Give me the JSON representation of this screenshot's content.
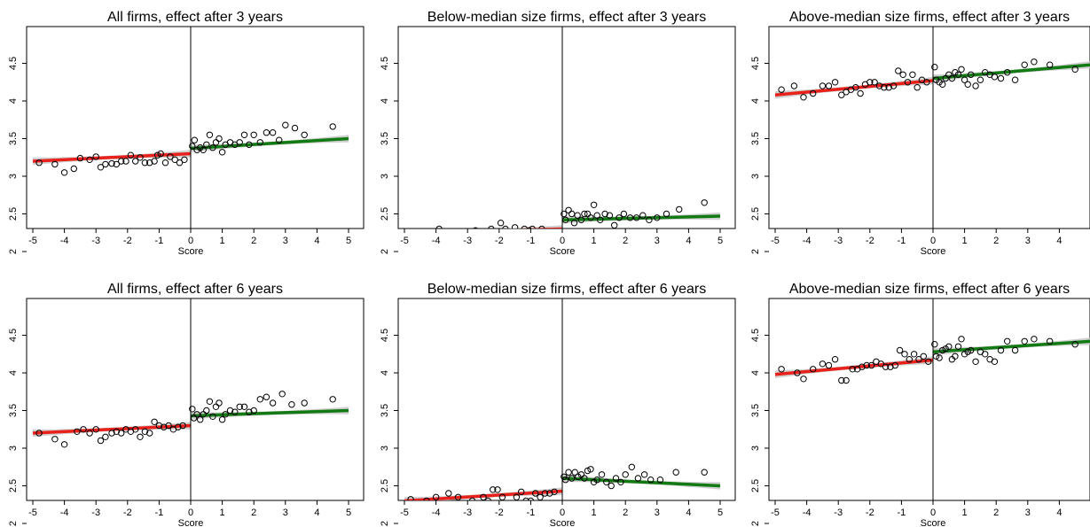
{
  "x_ticks": [
    -5,
    -4,
    -3,
    -2,
    -1,
    0,
    1,
    2,
    3,
    4,
    5
  ],
  "y_ticks": [
    2,
    2.5,
    3,
    3.5,
    4,
    4.5
  ],
  "y_tick_labels": [
    "2",
    "2.5",
    "3",
    "3.5",
    "4",
    "4.5"
  ],
  "colors": {
    "left_fit": "#e8211a",
    "right_fit": "#127a12",
    "ci_band": "#c8c8c8",
    "points": "#000000",
    "cutoff_line": "#000000"
  },
  "chart_data": [
    {
      "type": "scatter",
      "title": "All firms, effect after 3 years",
      "xlabel": "Score",
      "xlim": [
        -5,
        5
      ],
      "ylim": [
        2,
        4.5
      ],
      "left_fit": [
        [
          -5,
          3.2
        ],
        [
          0,
          3.3
        ]
      ],
      "right_fit": [
        [
          0,
          3.37
        ],
        [
          5,
          3.5
        ]
      ],
      "points": [
        [
          -4.8,
          3.18
        ],
        [
          -4.3,
          3.16
        ],
        [
          -4,
          3.05
        ],
        [
          -3.7,
          3.1
        ],
        [
          -3.5,
          3.24
        ],
        [
          -3.2,
          3.22
        ],
        [
          -3,
          3.26
        ],
        [
          -2.85,
          3.12
        ],
        [
          -2.7,
          3.16
        ],
        [
          -2.5,
          3.17
        ],
        [
          -2.35,
          3.16
        ],
        [
          -2.2,
          3.2
        ],
        [
          -2.05,
          3.2
        ],
        [
          -1.9,
          3.28
        ],
        [
          -1.75,
          3.2
        ],
        [
          -1.6,
          3.25
        ],
        [
          -1.45,
          3.18
        ],
        [
          -1.3,
          3.18
        ],
        [
          -1.15,
          3.2
        ],
        [
          -1.05,
          3.28
        ],
        [
          -0.95,
          3.3
        ],
        [
          -0.8,
          3.18
        ],
        [
          -0.65,
          3.26
        ],
        [
          -0.5,
          3.22
        ],
        [
          -0.35,
          3.18
        ],
        [
          -0.2,
          3.22
        ],
        [
          0.05,
          3.4
        ],
        [
          0.12,
          3.48
        ],
        [
          0.2,
          3.35
        ],
        [
          0.3,
          3.38
        ],
        [
          0.4,
          3.35
        ],
        [
          0.5,
          3.42
        ],
        [
          0.6,
          3.55
        ],
        [
          0.7,
          3.38
        ],
        [
          0.8,
          3.45
        ],
        [
          0.9,
          3.5
        ],
        [
          1.0,
          3.32
        ],
        [
          1.1,
          3.42
        ],
        [
          1.25,
          3.45
        ],
        [
          1.4,
          3.42
        ],
        [
          1.55,
          3.45
        ],
        [
          1.7,
          3.55
        ],
        [
          1.85,
          3.42
        ],
        [
          2.0,
          3.55
        ],
        [
          2.2,
          3.45
        ],
        [
          2.4,
          3.58
        ],
        [
          2.6,
          3.58
        ],
        [
          2.8,
          3.48
        ],
        [
          3.0,
          3.68
        ],
        [
          3.3,
          3.64
        ],
        [
          3.6,
          3.55
        ],
        [
          4.5,
          3.66
        ]
      ]
    },
    {
      "type": "scatter",
      "title": "Below-median size firms, effect after 3 years",
      "xlabel": "Score",
      "xlim": [
        -5,
        5
      ],
      "ylim": [
        2,
        4.5
      ],
      "left_fit": [
        [
          -5,
          2.25
        ],
        [
          0,
          2.3
        ]
      ],
      "right_fit": [
        [
          0,
          2.42
        ],
        [
          5,
          2.47
        ]
      ],
      "points": [
        [
          -4.8,
          2.25
        ],
        [
          -4.3,
          2.26
        ],
        [
          -3.9,
          2.3
        ],
        [
          -3.6,
          2.22
        ],
        [
          -3.3,
          2.24
        ],
        [
          -3.0,
          2.25
        ],
        [
          -2.75,
          2.28
        ],
        [
          -2.5,
          2.18
        ],
        [
          -2.25,
          2.3
        ],
        [
          -2.1,
          2.18
        ],
        [
          -1.95,
          2.38
        ],
        [
          -1.8,
          2.3
        ],
        [
          -1.65,
          2.22
        ],
        [
          -1.5,
          2.32
        ],
        [
          -1.35,
          2.18
        ],
        [
          -1.2,
          2.3
        ],
        [
          -1.05,
          2.28
        ],
        [
          -0.95,
          2.3
        ],
        [
          -0.8,
          2.2
        ],
        [
          -0.65,
          2.3
        ],
        [
          -0.5,
          2.25
        ],
        [
          -0.35,
          2.26
        ],
        [
          -0.2,
          2.24
        ],
        [
          0.05,
          2.5
        ],
        [
          0.1,
          2.42
        ],
        [
          0.2,
          2.55
        ],
        [
          0.3,
          2.5
        ],
        [
          0.38,
          2.38
        ],
        [
          0.48,
          2.48
        ],
        [
          0.6,
          2.42
        ],
        [
          0.7,
          2.5
        ],
        [
          0.8,
          2.5
        ],
        [
          0.9,
          2.45
        ],
        [
          1.0,
          2.62
        ],
        [
          1.1,
          2.48
        ],
        [
          1.2,
          2.42
        ],
        [
          1.35,
          2.5
        ],
        [
          1.5,
          2.48
        ],
        [
          1.65,
          2.35
        ],
        [
          1.8,
          2.45
        ],
        [
          1.95,
          2.5
        ],
        [
          2.15,
          2.45
        ],
        [
          2.35,
          2.45
        ],
        [
          2.55,
          2.48
        ],
        [
          2.75,
          2.42
        ],
        [
          3.0,
          2.45
        ],
        [
          3.3,
          2.5
        ],
        [
          3.7,
          2.56
        ],
        [
          4.5,
          2.65
        ]
      ]
    },
    {
      "type": "scatter",
      "title": "Above-median size firms, effect after 3 years",
      "xlabel": "Score",
      "xlim": [
        -5,
        5
      ],
      "ylim": [
        2,
        4.5
      ],
      "left_fit": [
        [
          -5,
          4.08
        ],
        [
          0,
          4.27
        ]
      ],
      "right_fit": [
        [
          0,
          4.3
        ],
        [
          5,
          4.48
        ]
      ],
      "points": [
        [
          -4.8,
          4.15
        ],
        [
          -4.4,
          4.2
        ],
        [
          -4.1,
          4.05
        ],
        [
          -3.8,
          4.1
        ],
        [
          -3.5,
          4.2
        ],
        [
          -3.3,
          4.2
        ],
        [
          -3.1,
          4.25
        ],
        [
          -2.9,
          4.08
        ],
        [
          -2.75,
          4.12
        ],
        [
          -2.6,
          4.15
        ],
        [
          -2.45,
          4.18
        ],
        [
          -2.3,
          4.1
        ],
        [
          -2.15,
          4.22
        ],
        [
          -2.0,
          4.25
        ],
        [
          -1.85,
          4.25
        ],
        [
          -1.7,
          4.2
        ],
        [
          -1.55,
          4.18
        ],
        [
          -1.4,
          4.18
        ],
        [
          -1.25,
          4.2
        ],
        [
          -1.1,
          4.4
        ],
        [
          -0.95,
          4.35
        ],
        [
          -0.8,
          4.25
        ],
        [
          -0.65,
          4.35
        ],
        [
          -0.5,
          4.18
        ],
        [
          -0.35,
          4.28
        ],
        [
          -0.2,
          4.25
        ],
        [
          0.05,
          4.45
        ],
        [
          0.1,
          4.28
        ],
        [
          0.2,
          4.25
        ],
        [
          0.3,
          4.22
        ],
        [
          0.4,
          4.3
        ],
        [
          0.5,
          4.35
        ],
        [
          0.6,
          4.3
        ],
        [
          0.7,
          4.38
        ],
        [
          0.8,
          4.35
        ],
        [
          0.9,
          4.42
        ],
        [
          1.0,
          4.28
        ],
        [
          1.1,
          4.22
        ],
        [
          1.2,
          4.35
        ],
        [
          1.35,
          4.2
        ],
        [
          1.5,
          4.28
        ],
        [
          1.65,
          4.38
        ],
        [
          1.8,
          4.35
        ],
        [
          1.95,
          4.32
        ],
        [
          2.15,
          4.3
        ],
        [
          2.35,
          4.38
        ],
        [
          2.6,
          4.28
        ],
        [
          2.9,
          4.48
        ],
        [
          3.2,
          4.52
        ],
        [
          3.7,
          4.48
        ],
        [
          4.5,
          4.42
        ]
      ]
    },
    {
      "type": "scatter",
      "title": "All firms, effect after 6 years",
      "xlabel": "Score",
      "xlim": [
        -5,
        5
      ],
      "ylim": [
        2,
        4.5
      ],
      "left_fit": [
        [
          -5,
          3.2
        ],
        [
          0,
          3.3
        ]
      ],
      "right_fit": [
        [
          0,
          3.43
        ],
        [
          5,
          3.5
        ]
      ],
      "points": [
        [
          -4.8,
          3.2
        ],
        [
          -4.3,
          3.12
        ],
        [
          -4.0,
          3.05
        ],
        [
          -3.6,
          3.22
        ],
        [
          -3.4,
          3.25
        ],
        [
          -3.2,
          3.2
        ],
        [
          -3.0,
          3.25
        ],
        [
          -2.85,
          3.1
        ],
        [
          -2.7,
          3.15
        ],
        [
          -2.5,
          3.2
        ],
        [
          -2.35,
          3.22
        ],
        [
          -2.2,
          3.2
        ],
        [
          -2.05,
          3.25
        ],
        [
          -1.9,
          3.22
        ],
        [
          -1.75,
          3.25
        ],
        [
          -1.6,
          3.15
        ],
        [
          -1.45,
          3.22
        ],
        [
          -1.3,
          3.2
        ],
        [
          -1.15,
          3.35
        ],
        [
          -1.0,
          3.3
        ],
        [
          -0.85,
          3.28
        ],
        [
          -0.7,
          3.3
        ],
        [
          -0.55,
          3.25
        ],
        [
          -0.4,
          3.28
        ],
        [
          -0.25,
          3.3
        ],
        [
          0.05,
          3.52
        ],
        [
          0.1,
          3.4
        ],
        [
          0.2,
          3.45
        ],
        [
          0.3,
          3.38
        ],
        [
          0.4,
          3.45
        ],
        [
          0.5,
          3.5
        ],
        [
          0.6,
          3.62
        ],
        [
          0.7,
          3.42
        ],
        [
          0.8,
          3.55
        ],
        [
          0.9,
          3.6
        ],
        [
          1.0,
          3.38
        ],
        [
          1.1,
          3.45
        ],
        [
          1.25,
          3.5
        ],
        [
          1.4,
          3.48
        ],
        [
          1.55,
          3.55
        ],
        [
          1.7,
          3.55
        ],
        [
          1.85,
          3.48
        ],
        [
          2.0,
          3.5
        ],
        [
          2.2,
          3.65
        ],
        [
          2.4,
          3.68
        ],
        [
          2.6,
          3.6
        ],
        [
          2.9,
          3.72
        ],
        [
          3.2,
          3.58
        ],
        [
          3.6,
          3.6
        ],
        [
          4.5,
          3.65
        ]
      ]
    },
    {
      "type": "scatter",
      "title": "Below-median size firms, effect after 6 years",
      "xlabel": "Score",
      "xlim": [
        -5,
        5
      ],
      "ylim": [
        2,
        4.5
      ],
      "left_fit": [
        [
          -5,
          2.3
        ],
        [
          0,
          2.43
        ]
      ],
      "right_fit": [
        [
          0,
          2.6
        ],
        [
          5,
          2.5
        ]
      ],
      "points": [
        [
          -4.8,
          2.32
        ],
        [
          -4.3,
          2.3
        ],
        [
          -4.0,
          2.35
        ],
        [
          -3.6,
          2.4
        ],
        [
          -3.3,
          2.35
        ],
        [
          -3.0,
          2.25
        ],
        [
          -2.85,
          2.3
        ],
        [
          -2.7,
          2.2
        ],
        [
          -2.5,
          2.35
        ],
        [
          -2.35,
          2.3
        ],
        [
          -2.2,
          2.45
        ],
        [
          -2.05,
          2.45
        ],
        [
          -1.9,
          2.35
        ],
        [
          -1.75,
          2.25
        ],
        [
          -1.6,
          2.18
        ],
        [
          -1.45,
          2.35
        ],
        [
          -1.3,
          2.42
        ],
        [
          -1.15,
          2.3
        ],
        [
          -1.0,
          2.3
        ],
        [
          -0.85,
          2.4
        ],
        [
          -0.7,
          2.35
        ],
        [
          -0.55,
          2.4
        ],
        [
          -0.4,
          2.4
        ],
        [
          -0.25,
          2.42
        ],
        [
          0.05,
          2.62
        ],
        [
          0.1,
          2.58
        ],
        [
          0.2,
          2.68
        ],
        [
          0.3,
          2.6
        ],
        [
          0.4,
          2.68
        ],
        [
          0.5,
          2.62
        ],
        [
          0.6,
          2.65
        ],
        [
          0.7,
          2.6
        ],
        [
          0.8,
          2.7
        ],
        [
          0.9,
          2.72
        ],
        [
          1.0,
          2.55
        ],
        [
          1.1,
          2.58
        ],
        [
          1.25,
          2.65
        ],
        [
          1.4,
          2.55
        ],
        [
          1.55,
          2.5
        ],
        [
          1.7,
          2.6
        ],
        [
          1.85,
          2.55
        ],
        [
          2.0,
          2.65
        ],
        [
          2.2,
          2.75
        ],
        [
          2.4,
          2.6
        ],
        [
          2.6,
          2.65
        ],
        [
          2.8,
          2.58
        ],
        [
          3.1,
          2.58
        ],
        [
          3.6,
          2.68
        ],
        [
          4.5,
          2.68
        ]
      ]
    },
    {
      "type": "scatter",
      "title": "Above-median size firms, effect after 6 years",
      "xlabel": "Score",
      "xlim": [
        -5,
        5
      ],
      "ylim": [
        2,
        4.5
      ],
      "left_fit": [
        [
          -5,
          3.98
        ],
        [
          0,
          4.17
        ]
      ],
      "right_fit": [
        [
          0,
          4.28
        ],
        [
          5,
          4.42
        ]
      ],
      "points": [
        [
          -4.8,
          4.05
        ],
        [
          -4.3,
          4.0
        ],
        [
          -4.1,
          3.92
        ],
        [
          -3.8,
          4.05
        ],
        [
          -3.5,
          4.12
        ],
        [
          -3.3,
          4.1
        ],
        [
          -3.1,
          4.18
        ],
        [
          -2.9,
          3.9
        ],
        [
          -2.75,
          3.9
        ],
        [
          -2.55,
          4.05
        ],
        [
          -2.4,
          4.05
        ],
        [
          -2.25,
          4.08
        ],
        [
          -2.1,
          4.1
        ],
        [
          -1.95,
          4.1
        ],
        [
          -1.8,
          4.15
        ],
        [
          -1.65,
          4.12
        ],
        [
          -1.5,
          4.08
        ],
        [
          -1.35,
          4.08
        ],
        [
          -1.2,
          4.1
        ],
        [
          -1.05,
          4.3
        ],
        [
          -0.9,
          4.25
        ],
        [
          -0.75,
          4.18
        ],
        [
          -0.6,
          4.25
        ],
        [
          -0.45,
          4.18
        ],
        [
          -0.3,
          4.22
        ],
        [
          -0.15,
          4.15
        ],
        [
          0.05,
          4.38
        ],
        [
          0.1,
          4.22
        ],
        [
          0.2,
          4.2
        ],
        [
          0.3,
          4.3
        ],
        [
          0.4,
          4.32
        ],
        [
          0.5,
          4.35
        ],
        [
          0.6,
          4.18
        ],
        [
          0.7,
          4.22
        ],
        [
          0.8,
          4.35
        ],
        [
          0.9,
          4.45
        ],
        [
          1.0,
          4.25
        ],
        [
          1.1,
          4.28
        ],
        [
          1.2,
          4.3
        ],
        [
          1.35,
          4.15
        ],
        [
          1.5,
          4.28
        ],
        [
          1.65,
          4.25
        ],
        [
          1.8,
          4.18
        ],
        [
          1.95,
          4.15
        ],
        [
          2.15,
          4.3
        ],
        [
          2.35,
          4.42
        ],
        [
          2.6,
          4.3
        ],
        [
          2.9,
          4.42
        ],
        [
          3.2,
          4.45
        ],
        [
          3.7,
          4.42
        ],
        [
          4.5,
          4.38
        ]
      ]
    }
  ]
}
